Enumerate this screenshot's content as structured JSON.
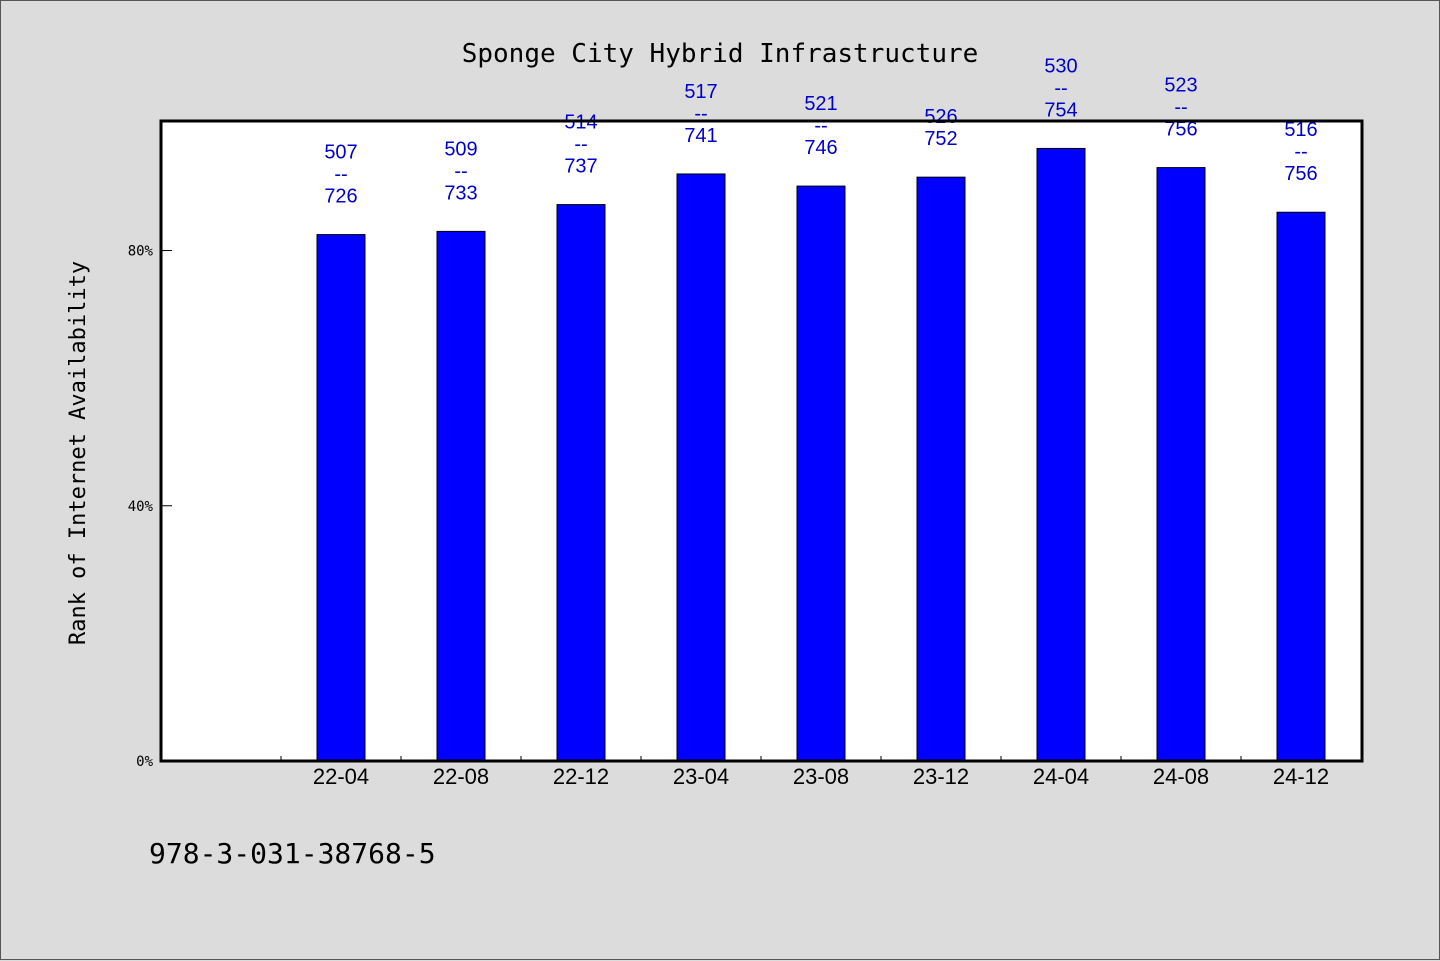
{
  "chart_data": {
    "type": "bar",
    "title": "Sponge City Hybrid Infrastructure",
    "xlabel": "",
    "ylabel": "Rank of Internet Availability",
    "categories": [
      "22-04",
      "22-08",
      "22-12",
      "23-04",
      "23-08",
      "23-12",
      "24-04",
      "24-08",
      "24-12"
    ],
    "series": [
      {
        "values": [
          82.5,
          83.0,
          87.2,
          92.0,
          90.1,
          91.5,
          96.0,
          93.0,
          86.0
        ],
        "data_labels": [
          [
            "507",
            "--",
            "726"
          ],
          [
            "509",
            "--",
            "733"
          ],
          [
            "514",
            "--",
            "737"
          ],
          [
            "517",
            "--",
            "741"
          ],
          [
            "521",
            "--",
            "746"
          ],
          [
            "526",
            "752"
          ],
          [
            "530",
            "--",
            "754"
          ],
          [
            "523",
            "--",
            "756"
          ],
          [
            "516",
            "--",
            "756"
          ]
        ]
      }
    ],
    "yticks": [
      0,
      40,
      80
    ],
    "ytick_labels": [
      "0%",
      "40%",
      "80%"
    ],
    "ylim": [
      0,
      100.3
    ],
    "bar_color": "#0000ff",
    "label_color": "#0000cc",
    "grid": false,
    "legend": "none"
  },
  "footer": {
    "isbn": "978-3-031-38768-5"
  }
}
